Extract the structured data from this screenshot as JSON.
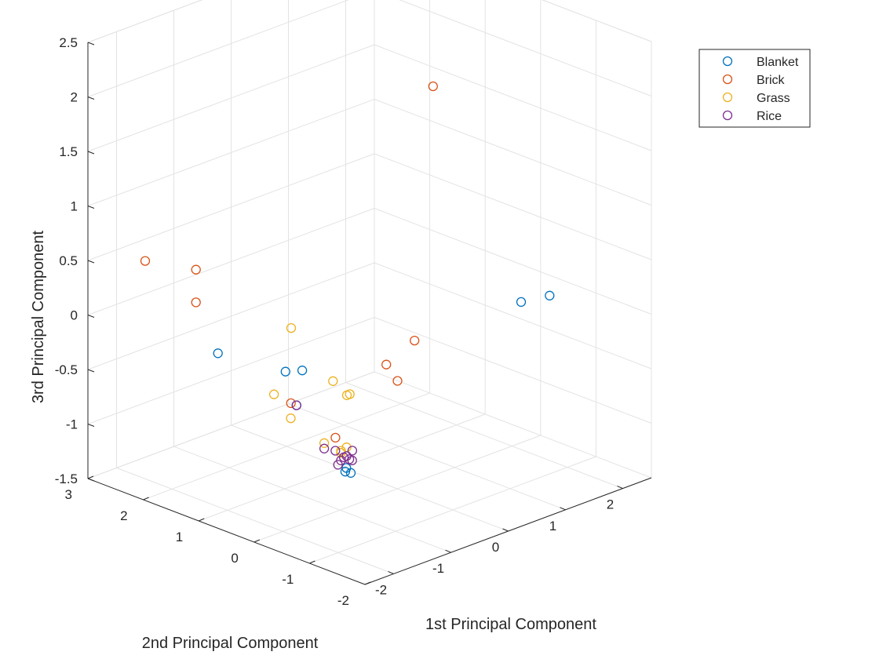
{
  "chart_data": {
    "type": "scatter",
    "projection": "3d",
    "xlabel": "1st Principal Component",
    "ylabel": "2nd Principal Component",
    "zlabel": "3rd Principal Component",
    "xlim": [
      -2.5,
      2.5
    ],
    "ylim": [
      -2,
      3
    ],
    "zlim": [
      -1.5,
      2.5
    ],
    "x_ticks": [
      "-2",
      "-1",
      "0",
      "1",
      "2"
    ],
    "y_ticks": [
      "-2",
      "-1",
      "0",
      "1",
      "2",
      "3"
    ],
    "z_ticks": [
      "-1.5",
      "-1",
      "-0.5",
      "0",
      "0.5",
      "1",
      "1.5",
      "2",
      "2.5"
    ],
    "grid": true,
    "legend_position": "top-right",
    "series": [
      {
        "name": "Blanket",
        "color": "#0072BD",
        "points": [
          [
            -1.1,
            2.1,
            -0.45
          ],
          [
            -0.5,
            1.2,
            -0.55
          ],
          [
            -0.55,
            1.45,
            -0.6
          ],
          [
            -0.6,
            1.2,
            -0.85
          ],
          [
            1.0,
            -1.2,
            0.25
          ],
          [
            1.4,
            -1.3,
            0.25
          ],
          [
            -0.6,
            0.3,
            -1.25
          ],
          [
            -0.62,
            0.3,
            -1.28
          ],
          [
            -0.6,
            0.22,
            -1.28
          ]
        ]
      },
      {
        "name": "Brick",
        "color": "#D95319",
        "points": [
          [
            -1.5,
            3.0,
            0.3
          ],
          [
            -1.0,
            2.6,
            0.2
          ],
          [
            -1.0,
            2.6,
            -0.1
          ],
          [
            1.3,
            0.7,
            1.8
          ],
          [
            0.3,
            0.0,
            -0.2
          ],
          [
            0.0,
            0.2,
            -0.4
          ],
          [
            0.1,
            0.1,
            -0.55
          ],
          [
            -0.5,
            0.6,
            -1.05
          ],
          [
            -0.6,
            1.3,
            -0.85
          ]
        ]
      },
      {
        "name": "Grass",
        "color": "#EDB120",
        "points": [
          [
            -0.5,
            1.4,
            -0.2
          ],
          [
            -0.35,
            0.8,
            -0.6
          ],
          [
            -0.8,
            1.4,
            -0.75
          ],
          [
            -0.7,
            1.2,
            -0.95
          ],
          [
            -0.25,
            0.6,
            -0.7
          ],
          [
            -0.3,
            0.6,
            -0.7
          ],
          [
            -0.6,
            0.7,
            -1.1
          ],
          [
            -0.5,
            0.5,
            -1.15
          ],
          [
            -0.5,
            0.4,
            -1.1
          ],
          [
            -0.55,
            0.45,
            -1.15
          ]
        ]
      },
      {
        "name": "Rice",
        "color": "#7E2F8E",
        "points": [
          [
            -0.6,
            0.7,
            -1.15
          ],
          [
            -0.55,
            0.55,
            -1.15
          ],
          [
            -0.5,
            0.45,
            -1.2
          ],
          [
            -0.45,
            0.45,
            -1.2
          ],
          [
            -0.4,
            0.4,
            -1.15
          ],
          [
            -0.55,
            0.45,
            -1.22
          ],
          [
            -0.6,
            0.45,
            -1.25
          ],
          [
            -0.5,
            0.35,
            -1.2
          ],
          [
            -0.45,
            0.35,
            -1.22
          ],
          [
            -0.6,
            1.2,
            -0.85
          ]
        ]
      }
    ]
  }
}
